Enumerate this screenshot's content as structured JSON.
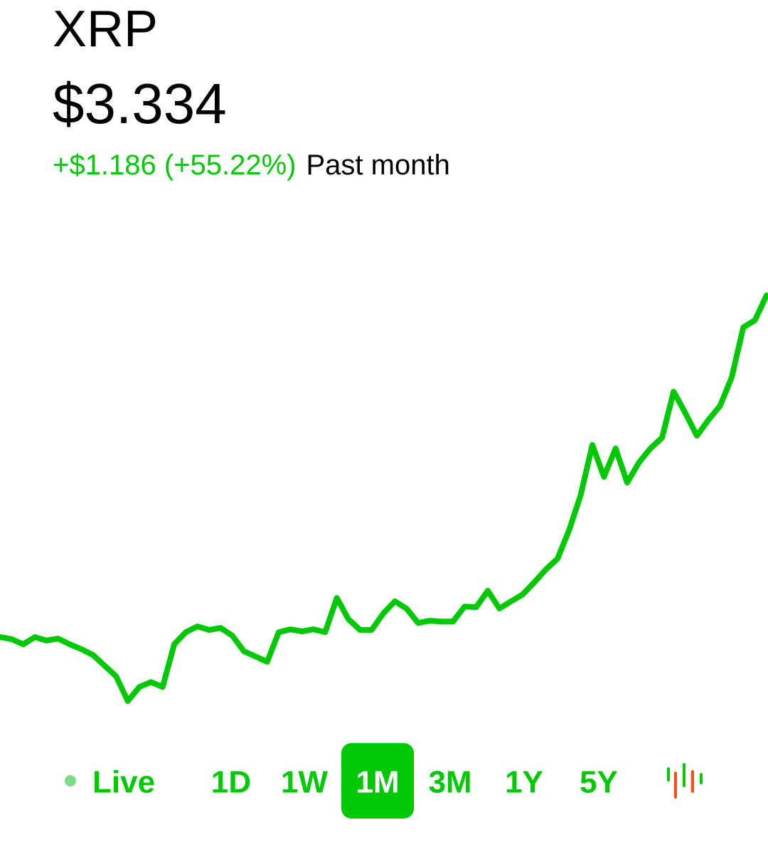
{
  "header": {
    "title": "XRP",
    "price": "$3.334",
    "change": "+$1.186 (+55.22%)",
    "period": "Past month"
  },
  "chart_data": {
    "type": "line",
    "color": "#00c805",
    "values": [
      2.148,
      2.141,
      2.123,
      2.148,
      2.136,
      2.143,
      2.123,
      2.106,
      2.086,
      2.049,
      2.012,
      1.926,
      1.975,
      1.992,
      1.975,
      2.123,
      2.165,
      2.185,
      2.173,
      2.18,
      2.153,
      2.099,
      2.081,
      2.062,
      2.165,
      2.175,
      2.168,
      2.175,
      2.165,
      2.284,
      2.21,
      2.173,
      2.173,
      2.23,
      2.272,
      2.247,
      2.197,
      2.205,
      2.202,
      2.202,
      2.254,
      2.252,
      2.309,
      2.247,
      2.272,
      2.296,
      2.338,
      2.383,
      2.42,
      2.519,
      2.642,
      2.815,
      2.704,
      2.803,
      2.684,
      2.753,
      2.803,
      2.84,
      3.0,
      2.926,
      2.847,
      2.902,
      2.951,
      3.05,
      3.223,
      3.248,
      3.334
    ]
  },
  "ranges": {
    "live": "Live",
    "options": [
      "1D",
      "1W",
      "1M",
      "3M",
      "1Y",
      "5Y"
    ],
    "selected": "1M"
  }
}
